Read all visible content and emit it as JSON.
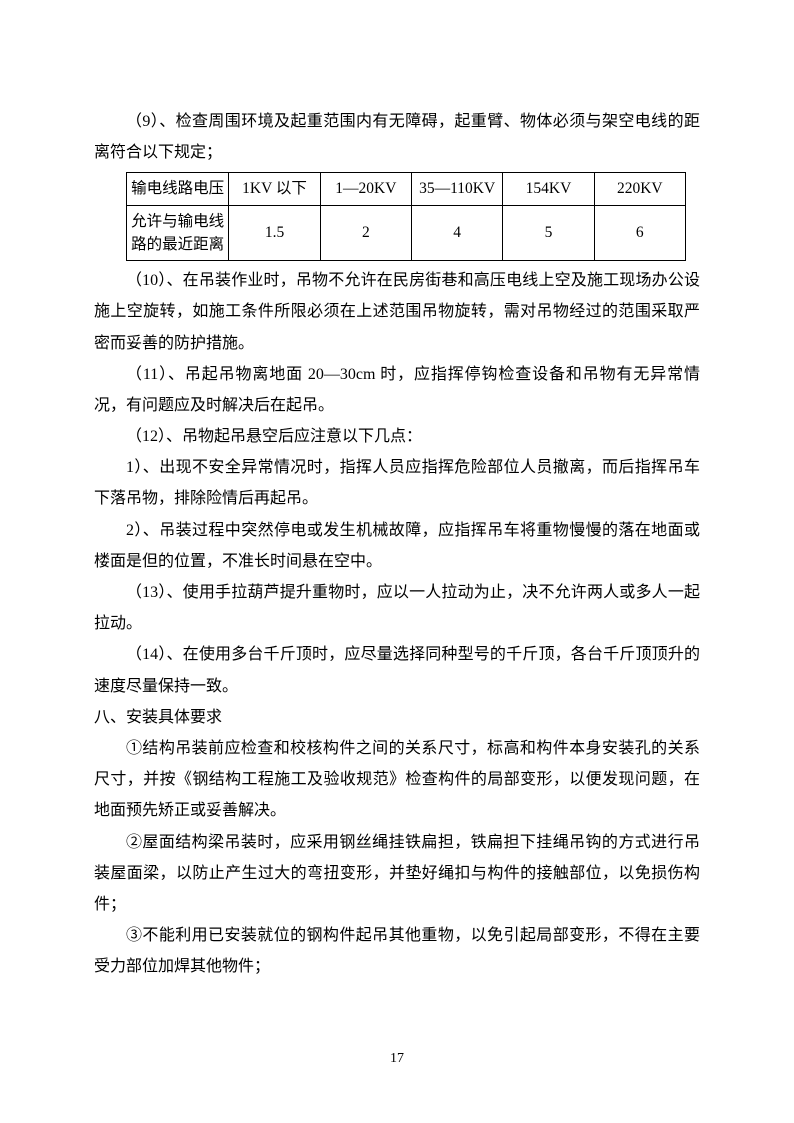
{
  "paragraphs": {
    "p1": "（9）、检查周围环境及起重范围内有无障碍，起重臂、物体必须与架空电线的距离符合以下规定；",
    "p2": "（10）、在吊装作业时，吊物不允许在民房街巷和高压电线上空及施工现场办公设施上空旋转，如施工条件所限必须在上述范围吊物旋转，需对吊物经过的范围采取严密而妥善的防护措施。",
    "p3": "（11）、吊起吊物离地面 20—30cm 时，应指挥停钩检查设备和吊物有无异常情况，有问题应及时解决后在起吊。",
    "p4": "（12）、吊物起吊悬空后应注意以下几点：",
    "p5": "1）、出现不安全异常情况时，指挥人员应指挥危险部位人员撤离，而后指挥吊车下落吊物，排除险情后再起吊。",
    "p6": "2）、吊装过程中突然停电或发生机械故障，应指挥吊车将重物慢慢的落在地面或楼面是但的位置，不准长时间悬在空中。",
    "p7": "（13）、使用手拉葫芦提升重物时，应以一人拉动为止，决不允许两人或多人一起拉动。",
    "p8": "（14）、在使用多台千斤顶时，应尽量选择同种型号的千斤顶，各台千斤顶顶升的速度尽量保持一致。",
    "p9": "八、安装具体要求",
    "p10": "①结构吊装前应检查和校核构件之间的关系尺寸，标高和构件本身安装孔的关系尺寸，并按《钢结构工程施工及验收规范》检查构件的局部变形，以便发现问题，在地面预先矫正或妥善解决。",
    "p11": "②屋面结构梁吊装时，应采用钢丝绳挂铁扁担，铁扁担下挂绳吊钩的方式进行吊装屋面梁，以防止产生过大的弯扭变形，并垫好绳扣与构件的接触部位，以免损伤构件；",
    "p12": "③不能利用已安装就位的钢构件起吊其他重物，以免引起局部变形，不得在主要受力部位加焊其他物件；"
  },
  "table": {
    "row1": {
      "c0": "输电线路电压",
      "c1": "1KV 以下",
      "c2": "1—20KV",
      "c3": "35—110KV",
      "c4": "154KV",
      "c5": "220KV"
    },
    "row2": {
      "c0": "允许与输电线路的最近距离",
      "c1": "1.5",
      "c2": "2",
      "c3": "4",
      "c4": "5",
      "c5": "6"
    }
  },
  "pageNumber": "17"
}
